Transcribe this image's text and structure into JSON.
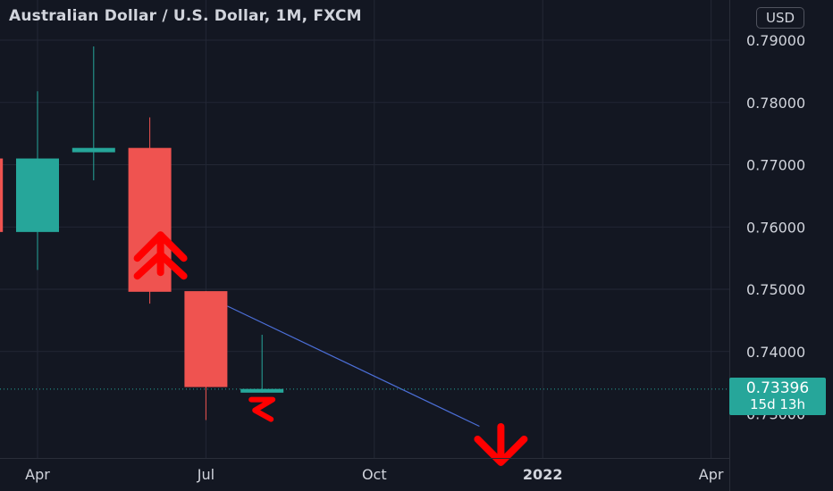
{
  "title": "Australian Dollar / U.S. Dollar, 1M, FXCM",
  "currency": "USD",
  "last_price": {
    "value": "0.73396",
    "countdown": "15d 13h",
    "color": "#26a69a"
  },
  "colors": {
    "background": "#131722",
    "grid": "#232735",
    "up": "#26a69a",
    "down": "#ef5350",
    "axis_text": "#d1d4dc",
    "trendline": "#4c6fd8",
    "arrow": "#ff0000"
  },
  "chart_data": {
    "type": "candlestick",
    "title": "Australian Dollar / U.S. Dollar, 1M, FXCM",
    "xlabel": "",
    "ylabel": "",
    "ylim": [
      0.7245,
      0.7955
    ],
    "y_ticks": [
      "0.79000",
      "0.78000",
      "0.77000",
      "0.76000",
      "0.75000",
      "0.74000"
    ],
    "x_ticks": [
      {
        "label": "Apr",
        "month": "2021-04"
      },
      {
        "label": "Jul",
        "month": "2021-07"
      },
      {
        "label": "Oct",
        "month": "2021-10"
      },
      {
        "label": "2022",
        "month": "2022-01"
      },
      {
        "label": "Apr",
        "month": "2022-04"
      }
    ],
    "grid": true,
    "candles": [
      {
        "month": "2021-03",
        "open": 0.771,
        "high": 0.771,
        "low": 0.759,
        "close": 0.7592
      },
      {
        "month": "2021-04",
        "open": 0.7592,
        "high": 0.7818,
        "low": 0.7531,
        "close": 0.771
      },
      {
        "month": "2021-05",
        "open": 0.772,
        "high": 0.789,
        "low": 0.7675,
        "close": 0.7727
      },
      {
        "month": "2021-06",
        "open": 0.7727,
        "high": 0.7776,
        "low": 0.7477,
        "close": 0.7496
      },
      {
        "month": "2021-07",
        "open": 0.7497,
        "high": 0.7497,
        "low": 0.729,
        "close": 0.7343
      },
      {
        "month": "2021-08",
        "open": 0.7334,
        "high": 0.7427,
        "low": 0.7334,
        "close": 0.734
      }
    ],
    "last_price": 0.73396,
    "trendline": {
      "from": {
        "month": "2021-07",
        "value": 0.7473
      },
      "to": {
        "month": "2021-12",
        "value": 0.728
      }
    },
    "annotations": [
      {
        "kind": "arrow-up",
        "month": "2021-06",
        "value": 0.757
      },
      {
        "kind": "arrow-down",
        "month": "2021-12",
        "value": 0.7265
      },
      {
        "kind": "squiggle",
        "month": "2021-08",
        "value": 0.732
      }
    ]
  }
}
